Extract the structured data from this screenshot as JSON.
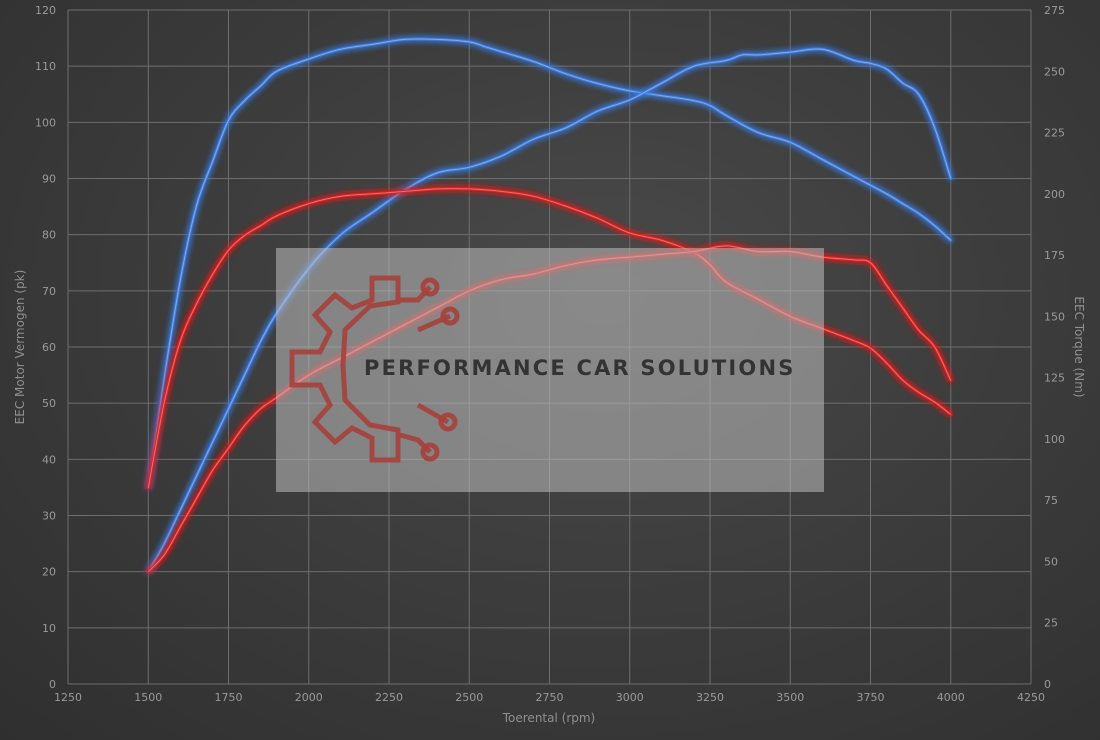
{
  "chart_data": {
    "type": "line",
    "title": "",
    "xlabel": "Toerental (rpm)",
    "ylabel_left": "EEC Motor Vermogen (pk)",
    "ylabel_right": "EEC Torque (Nm)",
    "xlim": [
      1250,
      4250
    ],
    "ylim_left": [
      0,
      120
    ],
    "ylim_right": [
      0,
      275
    ],
    "x_ticks": [
      1250,
      1500,
      1750,
      2000,
      2250,
      2500,
      2750,
      3000,
      3250,
      3500,
      3750,
      4000,
      4250
    ],
    "y_left_ticks": [
      0,
      10,
      20,
      30,
      40,
      50,
      60,
      70,
      80,
      90,
      100,
      110,
      120
    ],
    "y_right_ticks": [
      0,
      25,
      50,
      75,
      100,
      125,
      150,
      175,
      200,
      225,
      250,
      275
    ],
    "grid": true,
    "legend": "none",
    "colors": {
      "tuned": "#3d7be0",
      "stock": "#e02222",
      "grid": "#6e6e6e"
    },
    "series": [
      {
        "axis": "right",
        "color": "#3d7be0",
        "x": [
          1500,
          1550,
          1600,
          1650,
          1700,
          1750,
          1800,
          1850,
          1900,
          2000,
          2100,
          2200,
          2300,
          2400,
          2500,
          2550,
          2600,
          2700,
          2800,
          2900,
          3000,
          3100,
          3200,
          3250,
          3300,
          3400,
          3500,
          3600,
          3700,
          3800,
          3850,
          3900,
          3950,
          4000
        ],
        "y": [
          80,
          125,
          165,
          195,
          213,
          230,
          238,
          244,
          250,
          255,
          259,
          261,
          263,
          263,
          262,
          260,
          258,
          254,
          249,
          245,
          242,
          240,
          238,
          236,
          232,
          225,
          221,
          214,
          207,
          200,
          196,
          192,
          187,
          181
        ]
      },
      {
        "axis": "left",
        "color": "#3d7be0",
        "x": [
          1500,
          1550,
          1600,
          1650,
          1700,
          1750,
          1800,
          1850,
          1900,
          2000,
          2100,
          2200,
          2300,
          2400,
          2500,
          2600,
          2700,
          2800,
          2900,
          3000,
          3100,
          3200,
          3300,
          3350,
          3400,
          3500,
          3600,
          3700,
          3750,
          3800,
          3850,
          3900,
          3950,
          4000
        ],
        "y": [
          20,
          25,
          31,
          37,
          43,
          49,
          55,
          61,
          66,
          74,
          80,
          84,
          88,
          91,
          92,
          94,
          97,
          99,
          102,
          104,
          107,
          110,
          111,
          112,
          112,
          112.5,
          113,
          111,
          110.5,
          109.5,
          107,
          105,
          99,
          90
        ]
      },
      {
        "axis": "right",
        "color": "#e02222",
        "x": [
          1500,
          1550,
          1600,
          1650,
          1700,
          1750,
          1800,
          1850,
          1900,
          2000,
          2100,
          2200,
          2300,
          2400,
          2500,
          2600,
          2700,
          2800,
          2900,
          3000,
          3100,
          3200,
          3250,
          3300,
          3400,
          3500,
          3600,
          3700,
          3750,
          3800,
          3850,
          3900,
          3950,
          4000
        ],
        "y": [
          80,
          115,
          140,
          155,
          167,
          177,
          183,
          187,
          191,
          196,
          199,
          200,
          201,
          202,
          202,
          201,
          199,
          195,
          190,
          184,
          181,
          176,
          171,
          164,
          157,
          150,
          145,
          140,
          137,
          131,
          124,
          119,
          115,
          110
        ]
      },
      {
        "axis": "left",
        "color": "#e02222",
        "x": [
          1500,
          1550,
          1600,
          1650,
          1700,
          1750,
          1800,
          1850,
          1900,
          2000,
          2100,
          2200,
          2300,
          2400,
          2500,
          2600,
          2700,
          2800,
          2900,
          3000,
          3100,
          3200,
          3300,
          3400,
          3500,
          3600,
          3700,
          3750,
          3800,
          3850,
          3900,
          3950,
          4000
        ],
        "y": [
          20,
          23,
          28,
          33,
          38,
          42,
          46,
          49,
          51,
          55,
          58,
          61,
          64,
          67,
          70,
          72,
          73,
          74.5,
          75.5,
          76,
          76.5,
          77,
          78,
          77,
          77,
          76,
          75.5,
          75,
          71,
          67,
          63,
          60,
          54
        ]
      }
    ]
  },
  "watermark": {
    "text": "PERFORMANCE CAR SOLUTIONS"
  }
}
